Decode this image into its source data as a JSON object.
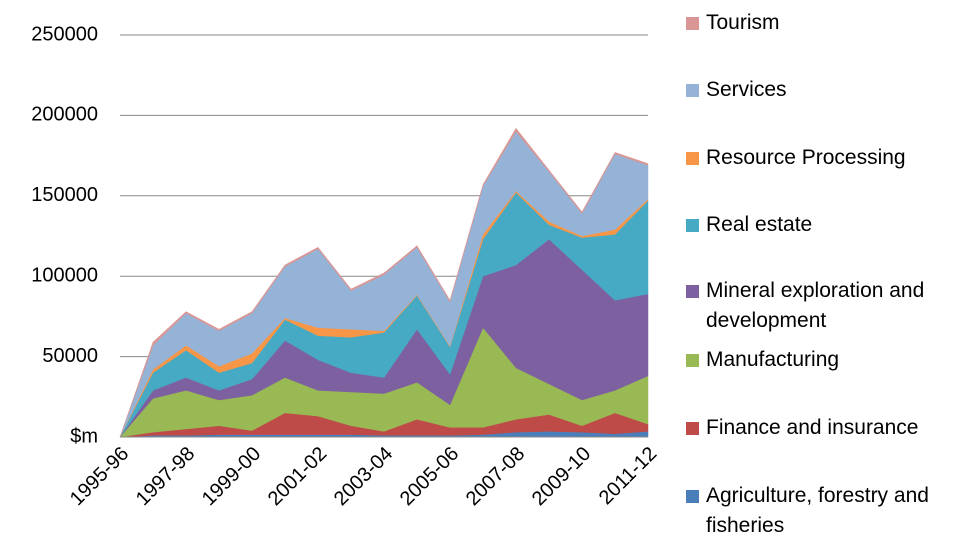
{
  "chart_data": {
    "type": "stacked-area",
    "categories": [
      "1995-96",
      null,
      "1997-98",
      null,
      "1999-00",
      null,
      "2001-02",
      null,
      "2003-04",
      null,
      "2005-06",
      null,
      "2007-08",
      null,
      "2009-10",
      null,
      "2011-12"
    ],
    "series": [
      {
        "name": "Agriculture, forestry and fisheries",
        "color": "#4a7ebb",
        "values": [
          0,
          1000,
          1000,
          1500,
          1500,
          1500,
          1500,
          1500,
          1000,
          1000,
          1000,
          1500,
          3000,
          3500,
          3000,
          2000,
          3500
        ]
      },
      {
        "name": "Finance and insurance",
        "color": "#be4b48",
        "values": [
          0,
          2000,
          4000,
          5500,
          2500,
          13500,
          11500,
          5500,
          2500,
          10000,
          5000,
          4500,
          8000,
          10500,
          4000,
          13000,
          4500
        ]
      },
      {
        "name": "Manufacturing",
        "color": "#98b954",
        "values": [
          0,
          21000,
          24000,
          16000,
          22000,
          22000,
          16000,
          21000,
          23500,
          23000,
          14000,
          62000,
          32000,
          19000,
          16000,
          14000,
          30000
        ]
      },
      {
        "name": "Mineral exploration and development",
        "color": "#7d60a0",
        "values": [
          0,
          5000,
          8000,
          6000,
          10000,
          23000,
          19000,
          12000,
          10000,
          33000,
          19000,
          32000,
          64000,
          90000,
          81000,
          56000,
          51000
        ]
      },
      {
        "name": "Real estate",
        "color": "#46aac5",
        "values": [
          0,
          11000,
          17000,
          11000,
          10000,
          13000,
          15000,
          22000,
          28000,
          21000,
          17000,
          23000,
          45000,
          9000,
          20000,
          41000,
          58000
        ]
      },
      {
        "name": "Resource Processing",
        "color": "#f79646",
        "values": [
          0,
          2000,
          3000,
          4000,
          6000,
          1000,
          5000,
          5000,
          1000,
          500,
          500,
          3000,
          1000,
          2000,
          1000,
          3000,
          1000
        ]
      },
      {
        "name": "Services",
        "color": "#95b3d7",
        "values": [
          0,
          15000,
          20000,
          22000,
          25000,
          32000,
          49000,
          24000,
          35000,
          29500,
          27500,
          30000,
          37000,
          31000,
          14000,
          47000,
          21000
        ]
      },
      {
        "name": "Tourism",
        "color": "#d99694",
        "values": [
          0,
          2000,
          1000,
          1000,
          1000,
          1000,
          1000,
          1000,
          1000,
          1000,
          1000,
          1000,
          2000,
          1000,
          1000,
          1000,
          1000
        ]
      }
    ],
    "ylim": [
      0,
      250000
    ],
    "yticks": [
      {
        "value": 0,
        "label": "$m"
      },
      50000,
      100000,
      150000,
      200000,
      250000
    ],
    "grid": true,
    "legend": "right"
  }
}
